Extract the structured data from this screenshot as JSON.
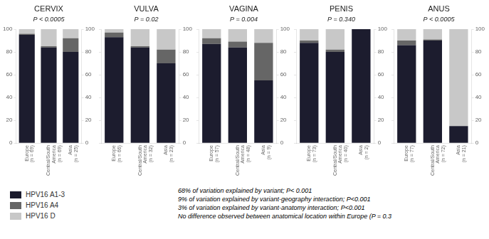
{
  "chart_data": [
    {
      "type": "bar",
      "stacked": true,
      "title": "CERVIX",
      "subtitle": "P < 0.0005",
      "categories": [
        "Europe",
        "Central/South\nAmerica",
        "Asia"
      ],
      "annotations": [
        {
          "x": "Europe",
          "text": "(n = 69)"
        },
        {
          "x": "Central/South\nAmerica",
          "text": "(n = 69)"
        },
        {
          "x": "Asia",
          "text": "(n = 25)"
        },
        {
          "text": "68% of variation explained by variant; P< 0.001"
        },
        {
          "text": "9% of variation explained by variant-geography interaction; P<0.001"
        },
        {
          "text": "3% of variation explained by variant-anatomy interaction; P<0.001"
        },
        {
          "text": "No difference observed between anatomical location within Europe (P = 0.3"
        }
      ],
      "series": [
        {
          "name": "HPV16 A1-3",
          "color": "#1c1c2e",
          "values": [
            95,
            84,
            80
          ]
        },
        {
          "name": "HPV16 A4",
          "color": "#666666",
          "values": [
            1,
            1,
            12
          ]
        },
        {
          "name": "HPV16 D",
          "color": "#c8c8c8",
          "values": [
            4,
            15,
            8
          ]
        }
      ],
      "ylim": [
        0,
        100
      ],
      "yticks": [
        0,
        20,
        40,
        60,
        80,
        100
      ],
      "y2lim": [
        0,
        100
      ],
      "y2ticks": [
        0,
        20,
        40,
        60,
        80,
        100
      ],
      "grid": false,
      "legend": "lower left"
    },
    {
      "type": "bar",
      "stacked": true,
      "title": "VULVA",
      "subtitle": "P = 0.02",
      "categories": [
        "Europe",
        "Central/South\nAmerica",
        "Asia"
      ],
      "annotations": [
        {
          "x": "Europe",
          "text": "(n = 66)"
        },
        {
          "x": "Central/South\nAmerica",
          "text": "(n = 32)"
        },
        {
          "x": "Asia",
          "text": "(n = 23)"
        }
      ],
      "series": [
        {
          "name": "HPV16 A1-3",
          "color": "#1c1c2e",
          "values": [
            93,
            84,
            70
          ]
        },
        {
          "name": "HPV16 A4",
          "color": "#666666",
          "values": [
            4,
            1,
            12
          ]
        },
        {
          "name": "HPV16 D",
          "color": "#c8c8c8",
          "values": [
            3,
            15,
            18
          ]
        }
      ],
      "ylim": [
        0,
        100
      ],
      "yticks": [
        0,
        20,
        40,
        60,
        80,
        100
      ],
      "y2lim": [
        0,
        100
      ],
      "y2ticks": [
        0,
        20,
        40,
        60,
        80,
        100
      ],
      "grid": false
    },
    {
      "type": "bar",
      "stacked": true,
      "title": "VAGINA",
      "subtitle": "P = 0.004",
      "categories": [
        "Europe",
        "Central/South\nAmerica",
        "Asia"
      ],
      "annotations": [
        {
          "x": "Europe",
          "text": "(n = 57)"
        },
        {
          "x": "Central/South\nAmerica",
          "text": "(n = 48)"
        },
        {
          "x": "Asia",
          "text": "(n = 9)"
        }
      ],
      "series": [
        {
          "name": "HPV16 A1-3",
          "color": "#1c1c2e",
          "values": [
            87,
            84,
            55
          ]
        },
        {
          "name": "HPV16 A4",
          "color": "#666666",
          "values": [
            5,
            5,
            33
          ]
        },
        {
          "name": "HPV16 D",
          "color": "#c8c8c8",
          "values": [
            8,
            11,
            12
          ]
        }
      ],
      "ylim": [
        0,
        100
      ],
      "yticks": [
        0,
        20,
        40,
        60,
        80,
        100
      ],
      "y2lim": [
        0,
        100
      ],
      "y2ticks": [
        0,
        20,
        40,
        60,
        80,
        100
      ],
      "grid": false
    },
    {
      "type": "bar",
      "stacked": true,
      "title": "PENIS",
      "subtitle": "P = 0.340",
      "categories": [
        "Europe",
        "Central/South\nAmerica",
        "Asia"
      ],
      "annotations": [
        {
          "x": "Europe",
          "text": "(n = 73)"
        },
        {
          "x": "Central/South\nAmerica",
          "text": "(n = 40)"
        },
        {
          "x": "Asia",
          "text": "(n = 2)"
        }
      ],
      "series": [
        {
          "name": "HPV16 A1-3",
          "color": "#1c1c2e",
          "values": [
            88,
            80,
            100
          ]
        },
        {
          "name": "HPV16 A4",
          "color": "#666666",
          "values": [
            2,
            2,
            0
          ]
        },
        {
          "name": "HPV16 D",
          "color": "#c8c8c8",
          "values": [
            10,
            18,
            0
          ]
        }
      ],
      "ylim": [
        0,
        100
      ],
      "yticks": [
        0,
        20,
        40,
        60,
        80,
        100
      ],
      "y2lim": [
        0,
        100
      ],
      "y2ticks": [
        0,
        20,
        40,
        60,
        80,
        100
      ],
      "grid": false
    },
    {
      "type": "bar",
      "stacked": true,
      "title": "ANUS",
      "subtitle": "P < 0.0005",
      "categories": [
        "Europe",
        "Central/South\nAmerica",
        "Asia"
      ],
      "annotations": [
        {
          "x": "Europe",
          "text": "(n = 77)"
        },
        {
          "x": "Central/South\nAmerica",
          "text": "(n = 72)"
        },
        {
          "x": "Asia",
          "text": "(n = 21)"
        }
      ],
      "series": [
        {
          "name": "HPV16 A1-3",
          "color": "#1c1c2e",
          "values": [
            86,
            90,
            15
          ]
        },
        {
          "name": "HPV16 A4",
          "color": "#666666",
          "values": [
            4,
            1,
            0
          ]
        },
        {
          "name": "HPV16 D",
          "color": "#c8c8c8",
          "values": [
            10,
            9,
            85
          ]
        }
      ],
      "ylim": [
        0,
        100
      ],
      "yticks": [
        0,
        20,
        40,
        60,
        80,
        100
      ],
      "y2lim": [
        0,
        100
      ],
      "y2ticks": [
        0,
        20,
        40,
        60,
        80,
        100
      ],
      "grid": false
    }
  ]
}
